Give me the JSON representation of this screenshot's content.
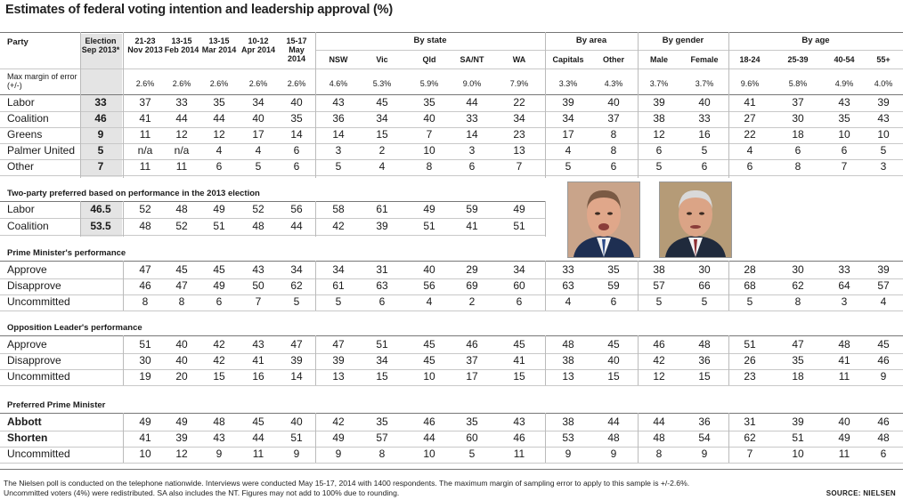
{
  "title": "Estimates of federal voting intention and leadership approval (%)",
  "header": {
    "party_label": "Party",
    "margin_label": "Max margin of error (+/-)",
    "columns": [
      "Election Sep 2013*",
      "21-23 Nov 2013",
      "13-15 Feb 2014",
      "13-15 Mar 2014",
      "10-12 Apr 2014",
      "15-17 May 2014",
      "NSW",
      "Vic",
      "Qld",
      "SA/NT",
      "WA",
      "Capitals",
      "Other",
      "Male",
      "Female",
      "18-24",
      "25-39",
      "40-54",
      "55+"
    ],
    "groups": [
      "By state",
      "By area",
      "By gender",
      "By age"
    ],
    "margins": [
      "",
      "2.6%",
      "2.6%",
      "2.6%",
      "2.6%",
      "2.6%",
      "4.6%",
      "5.3%",
      "5.9%",
      "9.0%",
      "7.9%",
      "3.3%",
      "4.3%",
      "3.7%",
      "3.7%",
      "9.6%",
      "5.8%",
      "4.9%",
      "4.0%"
    ]
  },
  "primary_vote": [
    {
      "label": "Labor",
      "values": [
        "33",
        "37",
        "33",
        "35",
        "34",
        "40",
        "43",
        "45",
        "35",
        "44",
        "22",
        "39",
        "40",
        "39",
        "40",
        "41",
        "37",
        "43",
        "39"
      ]
    },
    {
      "label": "Coalition",
      "values": [
        "46",
        "41",
        "44",
        "44",
        "40",
        "35",
        "36",
        "34",
        "40",
        "33",
        "34",
        "34",
        "37",
        "38",
        "33",
        "27",
        "30",
        "35",
        "43"
      ]
    },
    {
      "label": "Greens",
      "values": [
        "9",
        "11",
        "12",
        "12",
        "17",
        "14",
        "14",
        "15",
        "7",
        "14",
        "23",
        "17",
        "8",
        "12",
        "16",
        "22",
        "18",
        "10",
        "10"
      ]
    },
    {
      "label": "Palmer United",
      "values": [
        "5",
        "n/a",
        "n/a",
        "4",
        "4",
        "6",
        "3",
        "2",
        "10",
        "3",
        "13",
        "4",
        "8",
        "6",
        "5",
        "4",
        "6",
        "6",
        "5"
      ]
    },
    {
      "label": "Other",
      "values": [
        "7",
        "11",
        "11",
        "6",
        "5",
        "6",
        "5",
        "4",
        "8",
        "6",
        "7",
        "5",
        "6",
        "5",
        "6",
        "6",
        "8",
        "7",
        "3"
      ]
    }
  ],
  "tpp": {
    "heading": "Two-party preferred based on performance in the 2013 election",
    "rows": [
      {
        "label": "Labor",
        "values": [
          "46.5",
          "52",
          "48",
          "49",
          "52",
          "56",
          "58",
          "61",
          "49",
          "59",
          "49"
        ]
      },
      {
        "label": "Coalition",
        "values": [
          "53.5",
          "48",
          "52",
          "51",
          "48",
          "44",
          "42",
          "39",
          "51",
          "41",
          "51"
        ]
      }
    ]
  },
  "pm_performance": {
    "heading": "Prime Minister's performance",
    "rows": [
      {
        "label": "Approve",
        "values": [
          "47",
          "45",
          "45",
          "43",
          "34",
          "34",
          "31",
          "40",
          "29",
          "34",
          "33",
          "35",
          "38",
          "30",
          "28",
          "30",
          "33",
          "39"
        ]
      },
      {
        "label": "Disapprove",
        "values": [
          "46",
          "47",
          "49",
          "50",
          "62",
          "61",
          "63",
          "56",
          "69",
          "60",
          "63",
          "59",
          "57",
          "66",
          "68",
          "62",
          "64",
          "57"
        ]
      },
      {
        "label": "Uncommitted",
        "values": [
          "8",
          "8",
          "6",
          "7",
          "5",
          "5",
          "6",
          "4",
          "2",
          "6",
          "4",
          "6",
          "5",
          "5",
          "5",
          "8",
          "3",
          "4"
        ]
      }
    ]
  },
  "opp_performance": {
    "heading": "Opposition Leader's performance",
    "rows": [
      {
        "label": "Approve",
        "values": [
          "51",
          "40",
          "42",
          "43",
          "47",
          "47",
          "51",
          "45",
          "46",
          "45",
          "48",
          "45",
          "46",
          "48",
          "51",
          "47",
          "48",
          "45"
        ]
      },
      {
        "label": "Disapprove",
        "values": [
          "30",
          "40",
          "42",
          "41",
          "39",
          "39",
          "34",
          "45",
          "37",
          "41",
          "38",
          "40",
          "42",
          "36",
          "26",
          "35",
          "41",
          "46"
        ]
      },
      {
        "label": "Uncommitted",
        "values": [
          "19",
          "20",
          "15",
          "16",
          "14",
          "13",
          "15",
          "10",
          "17",
          "15",
          "13",
          "15",
          "12",
          "15",
          "23",
          "18",
          "11",
          "9"
        ]
      }
    ]
  },
  "preferred_pm": {
    "heading": "Preferred Prime Minister",
    "rows": [
      {
        "label": "Abbott",
        "bold": true,
        "values": [
          "49",
          "49",
          "48",
          "45",
          "40",
          "42",
          "35",
          "46",
          "35",
          "43",
          "38",
          "44",
          "44",
          "36",
          "31",
          "39",
          "40",
          "46"
        ]
      },
      {
        "label": "Shorten",
        "bold": true,
        "values": [
          "41",
          "39",
          "43",
          "44",
          "51",
          "49",
          "57",
          "44",
          "60",
          "46",
          "53",
          "48",
          "48",
          "54",
          "62",
          "51",
          "49",
          "48"
        ]
      },
      {
        "label": "Uncommitted",
        "bold": false,
        "values": [
          "10",
          "12",
          "9",
          "11",
          "9",
          "9",
          "8",
          "10",
          "5",
          "11",
          "9",
          "9",
          "8",
          "9",
          "7",
          "10",
          "11",
          "6"
        ]
      }
    ]
  },
  "photos": [
    {
      "name": "Abbott",
      "bg": "#c9a48a",
      "skin": "#e0a78a",
      "suit": "#1e2f52",
      "tie": "#2c4a88"
    },
    {
      "name": "Shorten",
      "bg": "#b59b77",
      "skin": "#dba486",
      "suit": "#202a3c",
      "tie": "#8b2f33"
    }
  ],
  "footnote": [
    "The Nielsen poll is conducted on the telephone nationwide. Interviews were conducted  May 15-17, 2014 with 1400 respondents. The maximum margin of sampling error to apply to this sample is +/-2.6%.",
    "Uncommitted voters (4%) were redistributed. SA also includes the NT. Figures may not add to 100% due to rounding."
  ],
  "source": "SOURCE: NIELSEN",
  "colors": {
    "shade": "#e4e4e4",
    "rule": "#c8c8c8",
    "text": "#1a1a1a"
  }
}
